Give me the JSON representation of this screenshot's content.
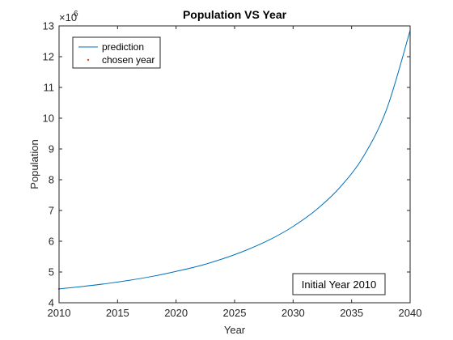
{
  "chart_data": {
    "type": "line",
    "title": "Population VS Year",
    "xlabel": "Year",
    "ylabel": "Population",
    "y_exponent_label": "×10",
    "y_exponent_power": "6",
    "y_scale_factor": 1000000,
    "xlim": [
      2010,
      2040
    ],
    "ylim": [
      4,
      13
    ],
    "xticks": [
      2010,
      2015,
      2020,
      2025,
      2030,
      2035,
      2040
    ],
    "yticks": [
      4,
      5,
      6,
      7,
      8,
      9,
      10,
      11,
      12,
      13
    ],
    "grid": false,
    "legend_position": "top-left",
    "series": [
      {
        "name": "prediction",
        "color": "#0072BD",
        "x": [
          2010,
          2012,
          2014,
          2016,
          2018,
          2020,
          2022,
          2024,
          2026,
          2028,
          2030,
          2032,
          2034,
          2036,
          2038,
          2040
        ],
        "y": [
          4.45,
          4.53,
          4.62,
          4.73,
          4.86,
          5.02,
          5.2,
          5.43,
          5.71,
          6.05,
          6.48,
          7.03,
          7.75,
          8.75,
          10.3,
          12.85
        ]
      },
      {
        "name": "chosen year",
        "color": "#D95319",
        "x": [
          2010
        ],
        "y": [
          4.45
        ]
      }
    ],
    "annotation": "Initial Year 2010"
  }
}
